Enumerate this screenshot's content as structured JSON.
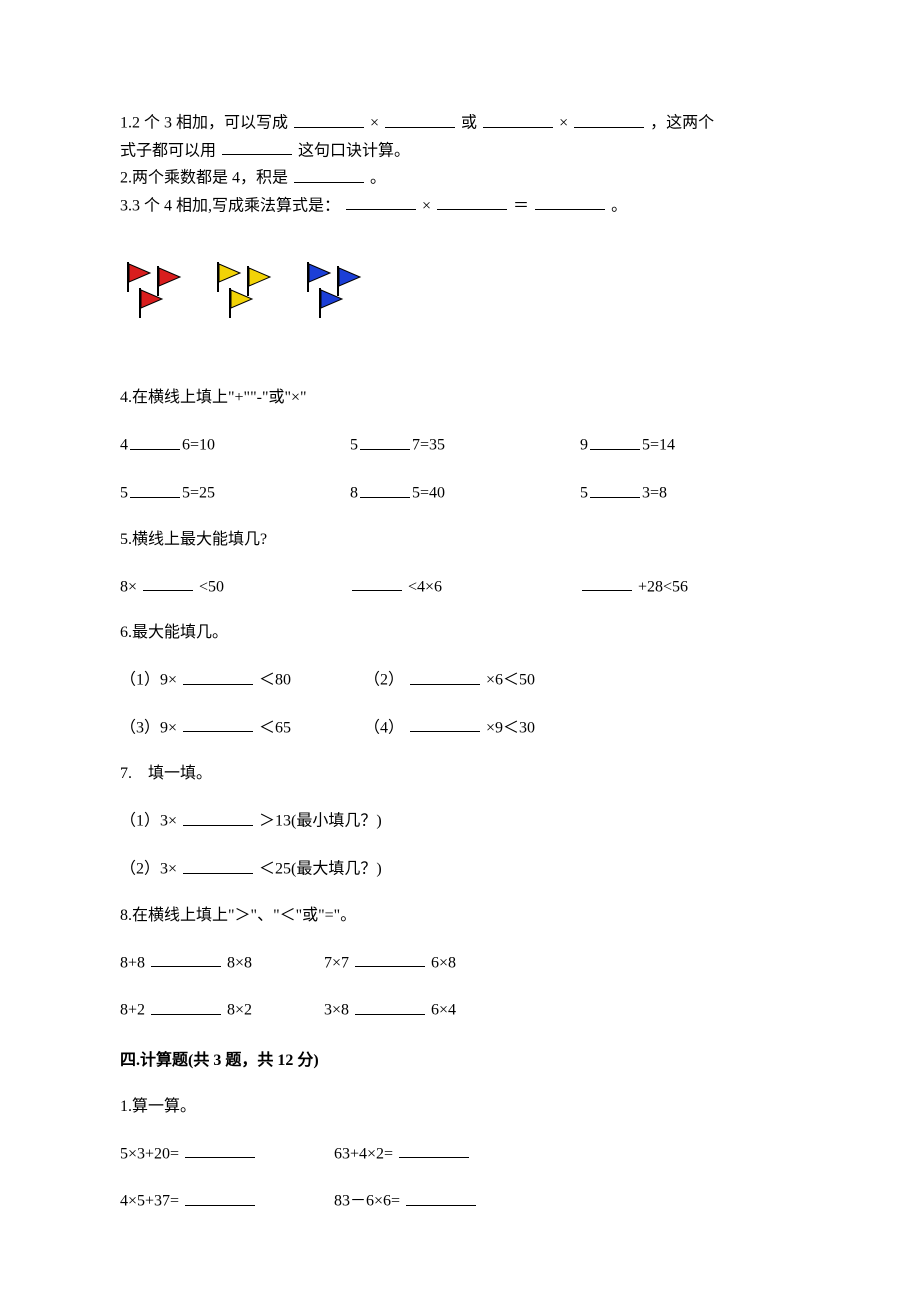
{
  "q1": {
    "prefix": "1.2 个 3 相加，可以写成",
    "times": "×",
    "or": "或",
    "tail_a": "，这两个",
    "line2_a": "式子都可以用",
    "line2_b": "这句口诀计算。"
  },
  "q2": {
    "a": "2.两个乘数都是 4，积是",
    "b": "。"
  },
  "q3": {
    "a": "3.3 个 4 相加,写成乘法算式是：",
    "times": "×",
    "eq": "＝",
    "b": "。"
  },
  "flags": {
    "groups": [
      {
        "color": "#d81e1e"
      },
      {
        "color": "#f2d307"
      },
      {
        "color": "#1c3fd6"
      }
    ],
    "stroke": "#000000",
    "pole": "#000000"
  },
  "q4": {
    "title": "4.在横线上填上\"+\"\"-\"或\"×\"",
    "rows": [
      [
        "4",
        "6=10",
        "5",
        "7=35",
        "9",
        "5=14"
      ],
      [
        "5",
        "5=25",
        "8",
        "5=40",
        "5",
        "3=8"
      ]
    ]
  },
  "q5": {
    "title": "5.横线上最大能填几?",
    "a1": "8×",
    "a2": "<50",
    "b2": "<4×6",
    "c2": "+28<56"
  },
  "q6": {
    "title": "6.最大能填几。",
    "items": [
      {
        "pre": "（1）9×",
        "post": "＜80"
      },
      {
        "pre": "（2）",
        "post": "×6＜50"
      },
      {
        "pre": "（3）9×",
        "post": "＜65"
      },
      {
        "pre": "（4）",
        "post": "×9＜30"
      }
    ]
  },
  "q7": {
    "title": "7.　填一填。",
    "i1_pre": "（1）3×",
    "i1_post": "＞13(最小填几？)",
    "i2_pre": "（2）3×",
    "i2_post": "＜25(最大填几？)"
  },
  "q8": {
    "title": "8.在横线上填上\"＞\"、\"＜\"或\"=\"。",
    "r1a_pre": "8+8",
    "r1a_post": "8×8",
    "r1b_pre": "7×7",
    "r1b_post": "6×8",
    "r2a_pre": "8+2",
    "r2a_post": "8×2",
    "r2b_pre": "3×8",
    "r2b_post": "6×4"
  },
  "section4": {
    "title": "四.计算题(共 3 题，共 12 分)",
    "q1_title": "1.算一算。",
    "r1a": "5×3+20=",
    "r1b": "63+4×2=",
    "r2a": "4×5+37=",
    "r2b": "83－6×6="
  }
}
